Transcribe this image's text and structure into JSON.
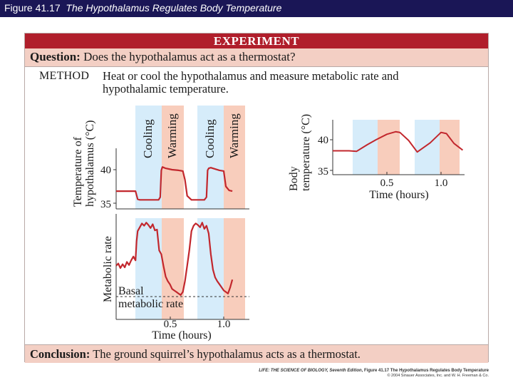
{
  "slide": {
    "title_prefix": "Figure 41.17",
    "title_main": "The Hypothalamus Regulates Body Temperature"
  },
  "experiment": {
    "header": "EXPERIMENT",
    "question_label": "Question:",
    "question_text": "Does the hypothalamus act as a thermostat?",
    "method_label": "METHOD",
    "method_text": "Heat or cool the hypothalamus and measure metabolic rate and hypothalamic temperature.",
    "conclusion_label": "Conclusion:",
    "conclusion_text": "The ground squirrel’s hypothalamus acts as a thermostat."
  },
  "phases": {
    "cooling_label": "Cooling",
    "warming_label": "Warming",
    "cooling_color": "#d6ecfa",
    "warming_color": "#f8cdbc"
  },
  "chart_data": [
    {
      "type": "line",
      "ylabel": "Temperature of hypothalamus (°C)",
      "y_ticks": [
        "40",
        "35"
      ],
      "color": "#c2272d",
      "x": [
        0.0,
        0.04,
        0.1,
        0.15,
        0.18,
        0.2,
        0.22,
        0.28,
        0.36,
        0.395,
        0.41,
        0.42,
        0.43,
        0.46,
        0.52,
        0.58,
        0.62,
        0.64,
        0.66,
        0.7,
        0.74,
        0.78,
        0.8,
        0.82,
        0.84,
        0.85,
        0.86,
        0.88,
        0.92,
        0.96,
        1.0,
        1.02,
        1.05,
        1.08
      ],
      "y": [
        36.8,
        36.8,
        36.8,
        36.8,
        36.8,
        35.6,
        35.5,
        35.5,
        35.5,
        35.5,
        35.9,
        39.9,
        40.4,
        40.2,
        40.0,
        39.9,
        39.8,
        38.5,
        36.1,
        35.5,
        35.5,
        35.5,
        35.5,
        35.5,
        35.9,
        39.9,
        40.2,
        40.3,
        40.1,
        39.9,
        39.8,
        37.5,
        36.9,
        36.8
      ]
    },
    {
      "type": "line",
      "ylabel": "Metabolic rate",
      "xlabel": "Time (hours)",
      "x_ticks": [
        "0.5",
        "1.0"
      ],
      "annotation": "Basal metabolic rate",
      "color": "#c2272d",
      "x": [
        0.0,
        0.02,
        0.04,
        0.06,
        0.08,
        0.1,
        0.12,
        0.14,
        0.16,
        0.18,
        0.19,
        0.2,
        0.22,
        0.24,
        0.26,
        0.28,
        0.3,
        0.32,
        0.34,
        0.36,
        0.38,
        0.4,
        0.42,
        0.44,
        0.46,
        0.48,
        0.5,
        0.52,
        0.54,
        0.56,
        0.58,
        0.6,
        0.62,
        0.64,
        0.66,
        0.68,
        0.7,
        0.72,
        0.74,
        0.76,
        0.78,
        0.8,
        0.82,
        0.84,
        0.86,
        0.88,
        0.9,
        0.92,
        0.94,
        0.96,
        0.98,
        1.0,
        1.02,
        1.04,
        1.06,
        1.08
      ],
      "y": [
        0.4,
        0.43,
        0.37,
        0.42,
        0.38,
        0.45,
        0.41,
        0.47,
        0.52,
        0.47,
        0.72,
        0.85,
        0.9,
        0.95,
        0.92,
        0.96,
        0.93,
        0.89,
        0.94,
        0.86,
        0.87,
        0.6,
        0.55,
        0.4,
        0.26,
        0.2,
        0.16,
        0.1,
        0.08,
        0.06,
        0.04,
        0.02,
        0.06,
        0.2,
        0.4,
        0.6,
        0.85,
        0.92,
        0.95,
        0.93,
        0.9,
        0.96,
        0.88,
        0.92,
        0.82,
        0.55,
        0.35,
        0.25,
        0.2,
        0.16,
        0.12,
        0.08,
        0.06,
        0.04,
        0.12,
        0.22
      ],
      "basal": 0.0
    },
    {
      "type": "line",
      "ylabel": "Body temperature (°C)",
      "xlabel": "Time (hours)",
      "y_ticks": [
        "40",
        "35"
      ],
      "x_ticks": [
        "0.5",
        "1.0"
      ],
      "color": "#c2272d",
      "x": [
        0.0,
        0.15,
        0.22,
        0.32,
        0.4,
        0.5,
        0.58,
        0.62,
        0.7,
        0.78,
        0.9,
        1.0,
        1.05,
        1.12,
        1.2
      ],
      "y": [
        38.2,
        38.2,
        38.1,
        39.2,
        40.0,
        40.9,
        41.3,
        41.2,
        39.9,
        38.0,
        39.5,
        41.2,
        41.0,
        39.4,
        38.3
      ]
    }
  ]
}
